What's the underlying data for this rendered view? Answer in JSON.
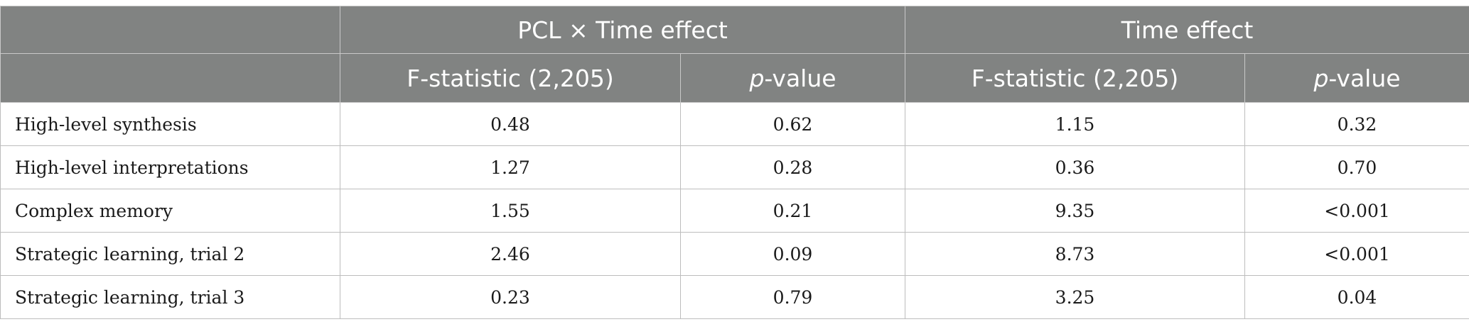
{
  "header": {
    "group_row": {
      "blank": "",
      "group1": "PCL × Time effect",
      "group2": "Time effect"
    },
    "sub_row": {
      "blank": "",
      "f_stat_1": "F-statistic (2,205)",
      "p_italic_1": "p",
      "p_suffix_1": "-value",
      "f_stat_2": "F-statistic (2,205)",
      "p_italic_2": "p",
      "p_suffix_2": "-value"
    }
  },
  "rows": [
    {
      "label": "High-level synthesis",
      "f1": "0.48",
      "p1": "0.62",
      "f2": "1.15",
      "p2": "0.32"
    },
    {
      "label": "High-level interpretations",
      "f1": "1.27",
      "p1": "0.28",
      "f2": "0.36",
      "p2": "0.70"
    },
    {
      "label": "Complex memory",
      "f1": "1.55",
      "p1": "0.21",
      "f2": "9.35",
      "p2": "<0.001"
    },
    {
      "label": "Strategic learning, trial 2",
      "f1": "2.46",
      "p1": "0.09",
      "f2": "8.73",
      "p2": "<0.001"
    },
    {
      "label": "Strategic learning, trial 3",
      "f1": "0.23",
      "p1": "0.79",
      "f2": "3.25",
      "p2": "0.04"
    }
  ]
}
